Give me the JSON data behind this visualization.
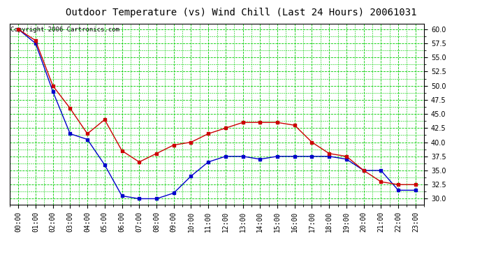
{
  "title": "Outdoor Temperature (vs) Wind Chill (Last 24 Hours) 20061031",
  "copyright": "Copyright 2006 Cartronics.com",
  "x_labels": [
    "00:00",
    "01:00",
    "02:00",
    "03:00",
    "04:00",
    "05:00",
    "06:00",
    "07:00",
    "08:00",
    "09:00",
    "10:00",
    "11:00",
    "12:00",
    "13:00",
    "14:00",
    "15:00",
    "16:00",
    "17:00",
    "18:00",
    "19:00",
    "20:00",
    "21:00",
    "22:00",
    "23:00"
  ],
  "temp_values": [
    60.0,
    58.0,
    50.0,
    46.0,
    41.5,
    44.0,
    38.5,
    36.5,
    38.0,
    39.5,
    40.0,
    41.5,
    42.5,
    43.5,
    43.5,
    43.5,
    43.0,
    40.0,
    38.0,
    37.5,
    35.0,
    33.0,
    32.5,
    32.5
  ],
  "windchill_values": [
    60.0,
    57.5,
    49.0,
    41.5,
    40.5,
    36.0,
    30.5,
    30.0,
    30.0,
    31.0,
    34.0,
    36.5,
    37.5,
    37.5,
    37.0,
    37.5,
    37.5,
    37.5,
    37.5,
    37.0,
    35.0,
    35.0,
    31.5,
    31.5
  ],
  "temp_color": "#cc0000",
  "windchill_color": "#0000cc",
  "grid_major_color": "#00cc00",
  "grid_minor_color": "#00cc00",
  "bg_color": "#ffffff",
  "ylim_min": 29.0,
  "ylim_max": 61.0,
  "ytick_min": 30.0,
  "ytick_max": 60.0,
  "ytick_step": 2.5,
  "title_fontsize": 10,
  "copyright_fontsize": 6.5,
  "tick_fontsize": 7,
  "marker_size": 2.5,
  "line_width": 1.0
}
